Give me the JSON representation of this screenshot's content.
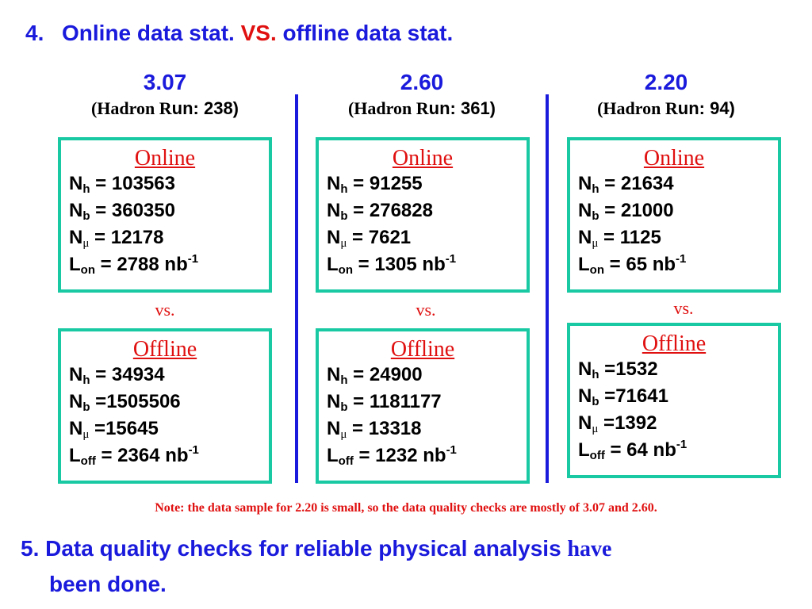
{
  "title": {
    "number": "4.",
    "part1": "Online data stat.",
    "vs": "VS.",
    "part2": "offline data stat."
  },
  "columns": [
    {
      "energy": "3.07",
      "run_prefix": "(Hadron R",
      "run_suffix": "un: 238)",
      "online": {
        "heading": "Online",
        "lines": [
          {
            "sym": "N",
            "sub": "h",
            "value": " = 103563"
          },
          {
            "sym": "N",
            "sub": "b",
            "value": " = 360350"
          },
          {
            "sym": "N",
            "sub": "μ",
            "value": " = 12178"
          },
          {
            "sym": "L",
            "sub": "on",
            "value": " = 2788 nb",
            "sup": "-1"
          }
        ]
      },
      "vs": "vs.",
      "offline": {
        "heading": "Offline",
        "lines": [
          {
            "sym": "N",
            "sub": "h",
            "value": " = 34934"
          },
          {
            "sym": "N",
            "sub": "b",
            "value": " =1505506"
          },
          {
            "sym": "N",
            "sub": "μ",
            "value": " =15645"
          },
          {
            "sym": "L",
            "sub": "off",
            "value": " = 2364 nb",
            "sup": "-1"
          }
        ]
      }
    },
    {
      "energy": "2.60",
      "run_prefix": "(Hadron R",
      "run_suffix": "un: 361)",
      "online": {
        "heading": "Online",
        "lines": [
          {
            "sym": "N",
            "sub": "h",
            "value": " = 91255"
          },
          {
            "sym": "N",
            "sub": "b",
            "value": " = 276828"
          },
          {
            "sym": "N",
            "sub": "μ",
            "value": " = 7621"
          },
          {
            "sym": "L",
            "sub": "on",
            "value": " = 1305 nb",
            "sup": "-1"
          }
        ]
      },
      "vs": "vs.",
      "offline": {
        "heading": "Offline",
        "lines": [
          {
            "sym": "N",
            "sub": "h",
            "value": " = 24900"
          },
          {
            "sym": "N",
            "sub": "b",
            "value": " = 1181177"
          },
          {
            "sym": "N",
            "sub": "μ",
            "value": " = 13318"
          },
          {
            "sym": "L",
            "sub": "off",
            "value": " = 1232 nb",
            "sup": "-1"
          }
        ]
      }
    },
    {
      "energy": "2.20",
      "run_prefix": "(Hadron R",
      "run_suffix": "un: 94)",
      "online": {
        "heading": "Online",
        "lines": [
          {
            "sym": "N",
            "sub": "h",
            "value": " = 21634"
          },
          {
            "sym": "N",
            "sub": "b",
            "value": " = 21000"
          },
          {
            "sym": "N",
            "sub": "μ",
            "value": " = 1125"
          },
          {
            "sym": "L",
            "sub": "on",
            "value": " = 65 nb",
            "sup": "-1"
          }
        ]
      },
      "vs": "vs.",
      "offline": {
        "heading": "Offline",
        "lines": [
          {
            "sym": "N",
            "sub": "h",
            "value": " =1532"
          },
          {
            "sym": "N",
            "sub": "b",
            "value": " =71641"
          },
          {
            "sym": "N",
            "sub": "μ",
            "value": " =1392"
          },
          {
            "sym": "L",
            "sub": "off",
            "value": " = 64 nb",
            "sup": "-1"
          }
        ]
      }
    }
  ],
  "note": "Note: the data sample for 2.20 is small, so the data quality checks are mostly of 3.07 and 2.60.",
  "conclusion": {
    "number": "5.",
    "text_sans": "Data quality checks for reliable physical analysis",
    "text_serif": "have",
    "line2": "been done."
  },
  "colors": {
    "blue": "#1a1adc",
    "red": "#e01010",
    "box_border": "#19c9a4"
  }
}
